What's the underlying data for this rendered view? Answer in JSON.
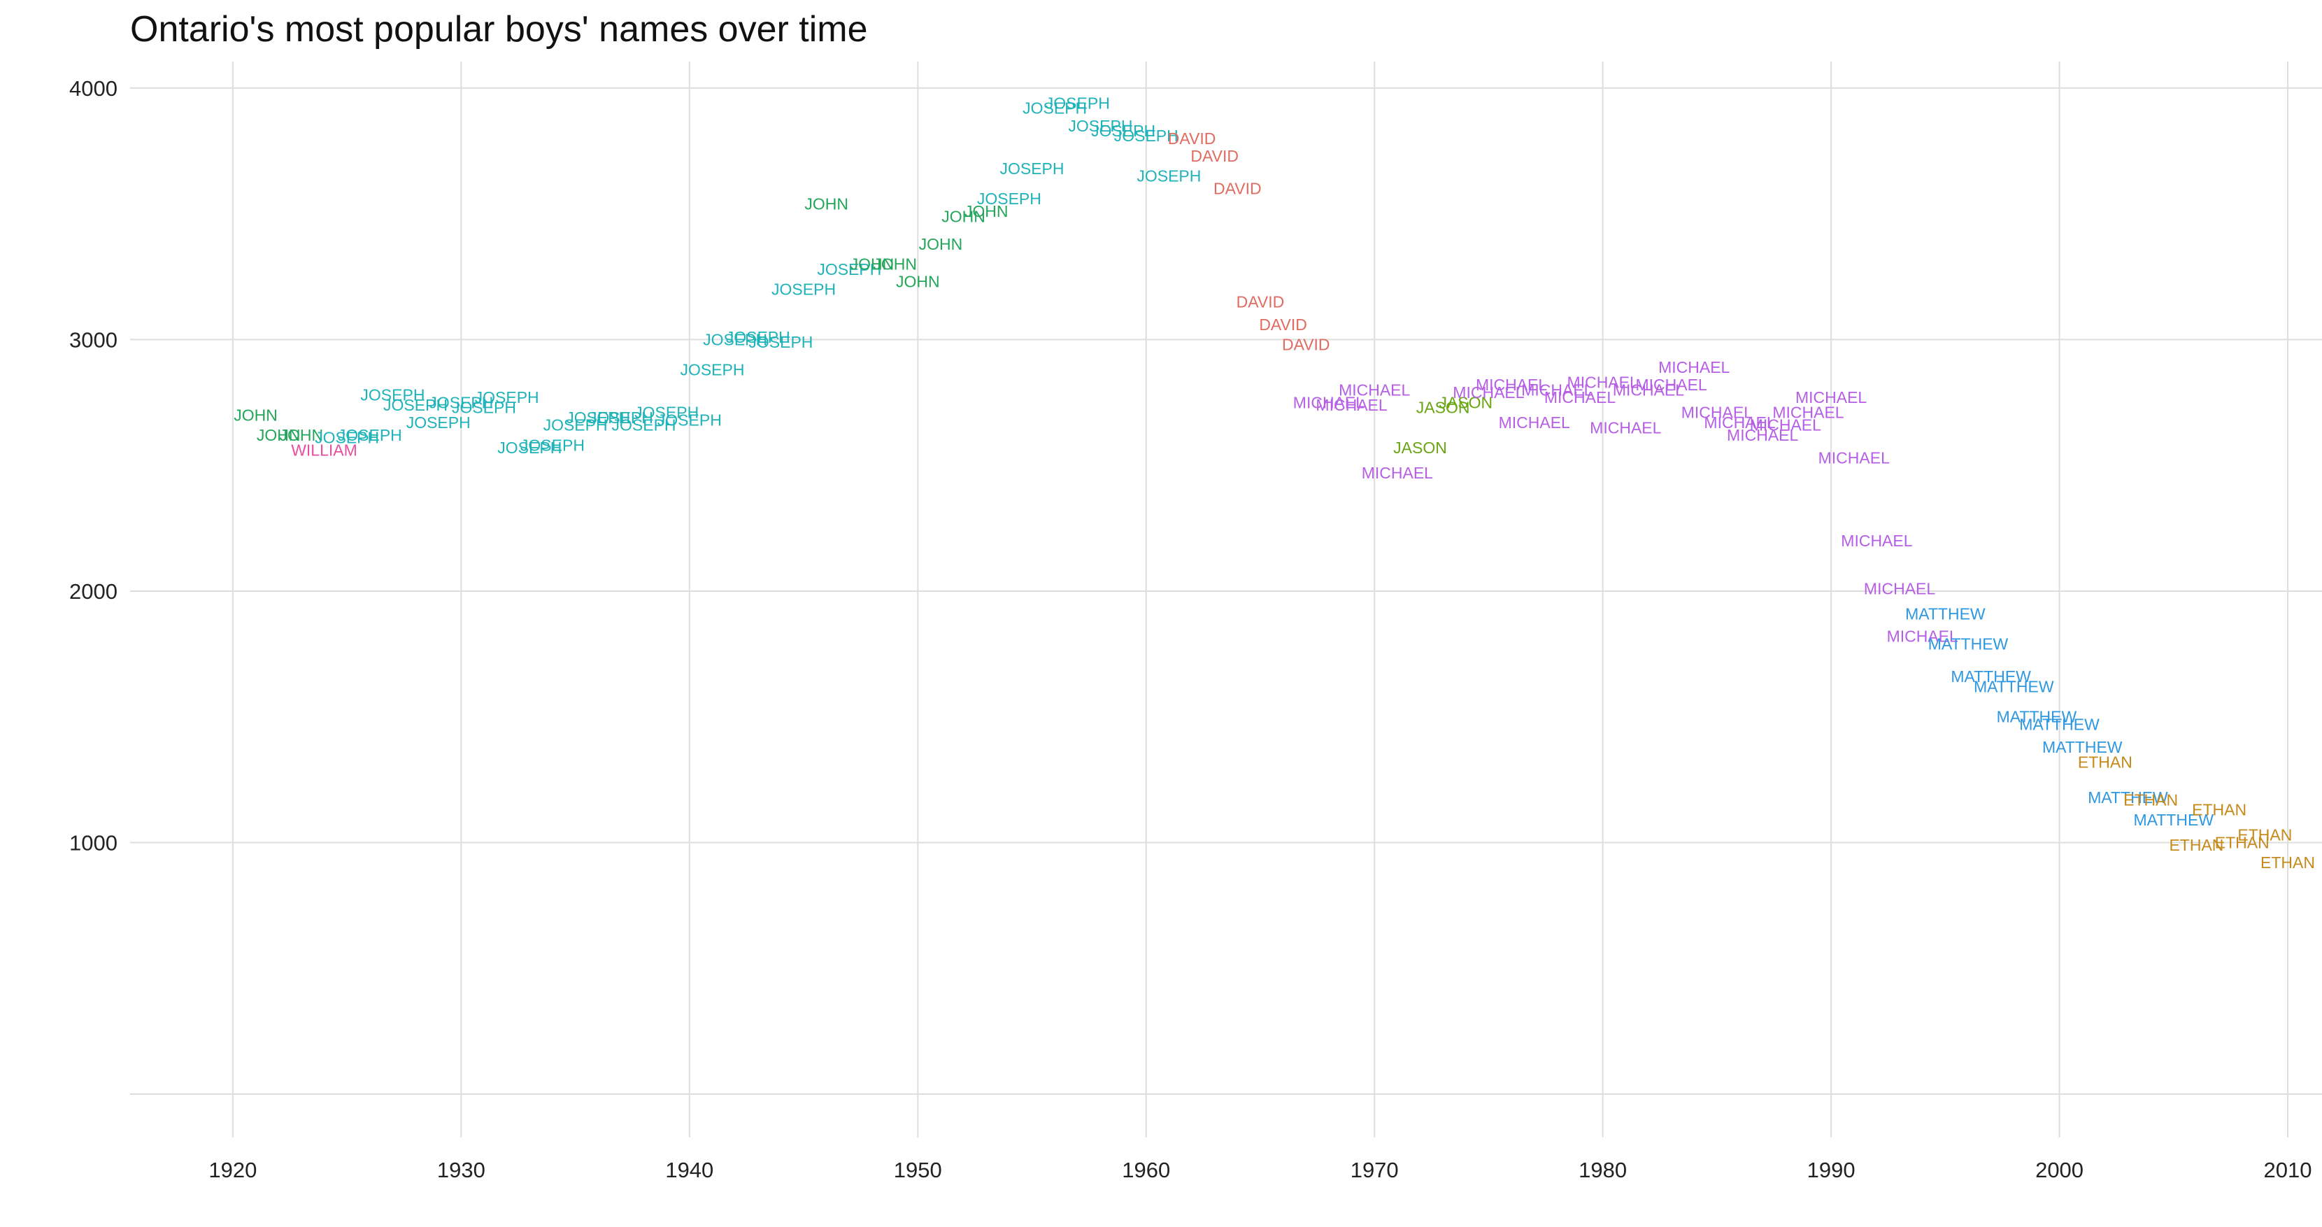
{
  "chart_data": {
    "type": "scatter",
    "title": "Ontario's most popular boys' names over time",
    "xlabel": "",
    "ylabel": "",
    "xlim": [
      1915.5,
      2011.5
    ],
    "ylim": [
      0,
      4200
    ],
    "x_ticks": [
      1920,
      1930,
      1940,
      1950,
      1960,
      1970,
      1980,
      1990,
      2000,
      2010
    ],
    "y_ticks": [
      1000,
      2000,
      3000,
      4000
    ],
    "grid": true,
    "legend": "none",
    "colors": {
      "JOHN": "#24a65a",
      "WILLIAM": "#e94fa0",
      "JOSEPH": "#1fb3b9",
      "DAVID": "#e06b61",
      "MICHAEL": "#b65ee6",
      "JASON": "#6aa514",
      "MATTHEW": "#2e97e0",
      "ETHAN": "#c68a1b"
    },
    "points": [
      {
        "name": "JOHN",
        "x": 1921,
        "y": 2700
      },
      {
        "name": "JOHN",
        "x": 1922,
        "y": 2620
      },
      {
        "name": "JOHN",
        "x": 1923,
        "y": 2620
      },
      {
        "name": "WILLIAM",
        "x": 1924,
        "y": 2560
      },
      {
        "name": "JOSEPH",
        "x": 1925,
        "y": 2610
      },
      {
        "name": "JOSEPH",
        "x": 1926,
        "y": 2620
      },
      {
        "name": "JOSEPH",
        "x": 1927,
        "y": 2780
      },
      {
        "name": "JOSEPH",
        "x": 1928,
        "y": 2740
      },
      {
        "name": "JOSEPH",
        "x": 1929,
        "y": 2670
      },
      {
        "name": "JOSEPH",
        "x": 1930,
        "y": 2750
      },
      {
        "name": "JOSEPH",
        "x": 1931,
        "y": 2730
      },
      {
        "name": "JOSEPH",
        "x": 1932,
        "y": 2770
      },
      {
        "name": "JOSEPH",
        "x": 1933,
        "y": 2570
      },
      {
        "name": "JOSEPH",
        "x": 1934,
        "y": 2580
      },
      {
        "name": "JOSEPH",
        "x": 1935,
        "y": 2660
      },
      {
        "name": "JOSEPH",
        "x": 1936,
        "y": 2690
      },
      {
        "name": "JOSEPH",
        "x": 1937,
        "y": 2690
      },
      {
        "name": "JOSEPH",
        "x": 1938,
        "y": 2660
      },
      {
        "name": "JOSEPH",
        "x": 1939,
        "y": 2710
      },
      {
        "name": "JOSEPH",
        "x": 1940,
        "y": 2680
      },
      {
        "name": "JOSEPH",
        "x": 1941,
        "y": 2880
      },
      {
        "name": "JOSEPH",
        "x": 1942,
        "y": 3000
      },
      {
        "name": "JOSEPH",
        "x": 1943,
        "y": 3010
      },
      {
        "name": "JOSEPH",
        "x": 1944,
        "y": 2990
      },
      {
        "name": "JOSEPH",
        "x": 1945,
        "y": 3200
      },
      {
        "name": "JOHN",
        "x": 1946,
        "y": 3540
      },
      {
        "name": "JOSEPH",
        "x": 1947,
        "y": 3280
      },
      {
        "name": "JOHN",
        "x": 1948,
        "y": 3300
      },
      {
        "name": "JOHN",
        "x": 1949,
        "y": 3300
      },
      {
        "name": "JOHN",
        "x": 1950,
        "y": 3230
      },
      {
        "name": "JOHN",
        "x": 1951,
        "y": 3380
      },
      {
        "name": "JOHN",
        "x": 1952,
        "y": 3490
      },
      {
        "name": "JOHN",
        "x": 1953,
        "y": 3510
      },
      {
        "name": "JOSEPH",
        "x": 1954,
        "y": 3560
      },
      {
        "name": "JOSEPH",
        "x": 1955,
        "y": 3680
      },
      {
        "name": "JOSEPH",
        "x": 1956,
        "y": 3920
      },
      {
        "name": "JOSEPH",
        "x": 1957,
        "y": 3940
      },
      {
        "name": "JOSEPH",
        "x": 1958,
        "y": 3850
      },
      {
        "name": "JOSEPH",
        "x": 1959,
        "y": 3830
      },
      {
        "name": "JOSEPH",
        "x": 1960,
        "y": 3810
      },
      {
        "name": "JOSEPH",
        "x": 1961,
        "y": 3650
      },
      {
        "name": "DAVID",
        "x": 1962,
        "y": 3800
      },
      {
        "name": "DAVID",
        "x": 1963,
        "y": 3730
      },
      {
        "name": "DAVID",
        "x": 1964,
        "y": 3600
      },
      {
        "name": "DAVID",
        "x": 1965,
        "y": 3150
      },
      {
        "name": "DAVID",
        "x": 1966,
        "y": 3060
      },
      {
        "name": "DAVID",
        "x": 1967,
        "y": 2980
      },
      {
        "name": "MICHAEL",
        "x": 1968,
        "y": 2750
      },
      {
        "name": "MICHAEL",
        "x": 1969,
        "y": 2740
      },
      {
        "name": "MICHAEL",
        "x": 1970,
        "y": 2800
      },
      {
        "name": "MICHAEL",
        "x": 1971,
        "y": 2470
      },
      {
        "name": "JASON",
        "x": 1972,
        "y": 2570
      },
      {
        "name": "JASON",
        "x": 1973,
        "y": 2730
      },
      {
        "name": "JASON",
        "x": 1974,
        "y": 2750
      },
      {
        "name": "MICHAEL",
        "x": 1975,
        "y": 2790
      },
      {
        "name": "MICHAEL",
        "x": 1976,
        "y": 2820
      },
      {
        "name": "MICHAEL",
        "x": 1977,
        "y": 2670
      },
      {
        "name": "MICHAEL",
        "x": 1978,
        "y": 2800
      },
      {
        "name": "MICHAEL",
        "x": 1979,
        "y": 2770
      },
      {
        "name": "MICHAEL",
        "x": 1980,
        "y": 2830
      },
      {
        "name": "MICHAEL",
        "x": 1981,
        "y": 2650
      },
      {
        "name": "MICHAEL",
        "x": 1982,
        "y": 2800
      },
      {
        "name": "MICHAEL",
        "x": 1983,
        "y": 2820
      },
      {
        "name": "MICHAEL",
        "x": 1984,
        "y": 2890
      },
      {
        "name": "MICHAEL",
        "x": 1985,
        "y": 2710
      },
      {
        "name": "MICHAEL",
        "x": 1986,
        "y": 2670
      },
      {
        "name": "MICHAEL",
        "x": 1987,
        "y": 2620
      },
      {
        "name": "MICHAEL",
        "x": 1988,
        "y": 2660
      },
      {
        "name": "MICHAEL",
        "x": 1989,
        "y": 2710
      },
      {
        "name": "MICHAEL",
        "x": 1990,
        "y": 2770
      },
      {
        "name": "MICHAEL",
        "x": 1991,
        "y": 2530
      },
      {
        "name": "MICHAEL",
        "x": 1992,
        "y": 2200
      },
      {
        "name": "MICHAEL",
        "x": 1993,
        "y": 2010
      },
      {
        "name": "MICHAEL",
        "x": 1994,
        "y": 1820
      },
      {
        "name": "MATTHEW",
        "x": 1995,
        "y": 1910
      },
      {
        "name": "MATTHEW",
        "x": 1996,
        "y": 1790
      },
      {
        "name": "MATTHEW",
        "x": 1997,
        "y": 1660
      },
      {
        "name": "MATTHEW",
        "x": 1998,
        "y": 1620
      },
      {
        "name": "MATTHEW",
        "x": 1999,
        "y": 1500
      },
      {
        "name": "MATTHEW",
        "x": 2000,
        "y": 1470
      },
      {
        "name": "MATTHEW",
        "x": 2001,
        "y": 1380
      },
      {
        "name": "ETHAN",
        "x": 2002,
        "y": 1320
      },
      {
        "name": "MATTHEW",
        "x": 2003,
        "y": 1180
      },
      {
        "name": "ETHAN",
        "x": 2004,
        "y": 1170
      },
      {
        "name": "MATTHEW",
        "x": 2005,
        "y": 1090
      },
      {
        "name": "ETHAN",
        "x": 2006,
        "y": 990
      },
      {
        "name": "ETHAN",
        "x": 2007,
        "y": 1130
      },
      {
        "name": "ETHAN",
        "x": 2008,
        "y": 1000
      },
      {
        "name": "ETHAN",
        "x": 2009,
        "y": 1030
      },
      {
        "name": "ETHAN",
        "x": 2010,
        "y": 920
      }
    ]
  }
}
